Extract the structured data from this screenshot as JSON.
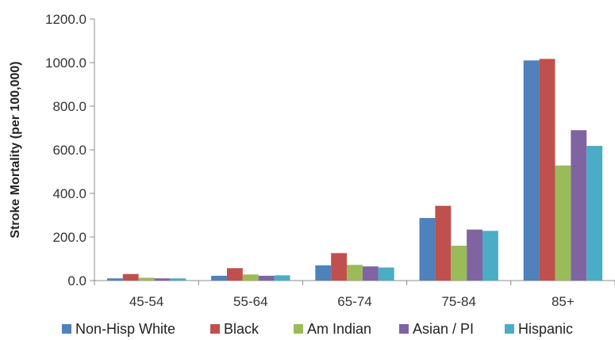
{
  "chart_data": {
    "type": "bar",
    "title": "",
    "xlabel": "",
    "ylabel": "Stroke Mortality (per 100,000)",
    "categories": [
      "45-54",
      "55-64",
      "65-74",
      "75-84",
      "85+"
    ],
    "ylim": [
      0,
      1200
    ],
    "yticks": [
      "0.0",
      "200.0",
      "400.0",
      "600.0",
      "800.0",
      "1000.0",
      "1200.0"
    ],
    "grid": false,
    "legend_position": "bottom",
    "series": [
      {
        "name": "Non-Hisp White",
        "color": "#4F81BD",
        "values": [
          10,
          22,
          70,
          287,
          1010
        ]
      },
      {
        "name": "Black",
        "color": "#C0504D",
        "values": [
          30,
          57,
          126,
          343,
          1017
        ]
      },
      {
        "name": "Am Indian",
        "color": "#9BBB59",
        "values": [
          13,
          28,
          72,
          160,
          528
        ]
      },
      {
        "name": "Asian / PI",
        "color": "#8064A2",
        "values": [
          10,
          22,
          65,
          234,
          690
        ]
      },
      {
        "name": "Hispanic",
        "color": "#4BACC6",
        "values": [
          10,
          24,
          60,
          228,
          618
        ]
      }
    ]
  }
}
